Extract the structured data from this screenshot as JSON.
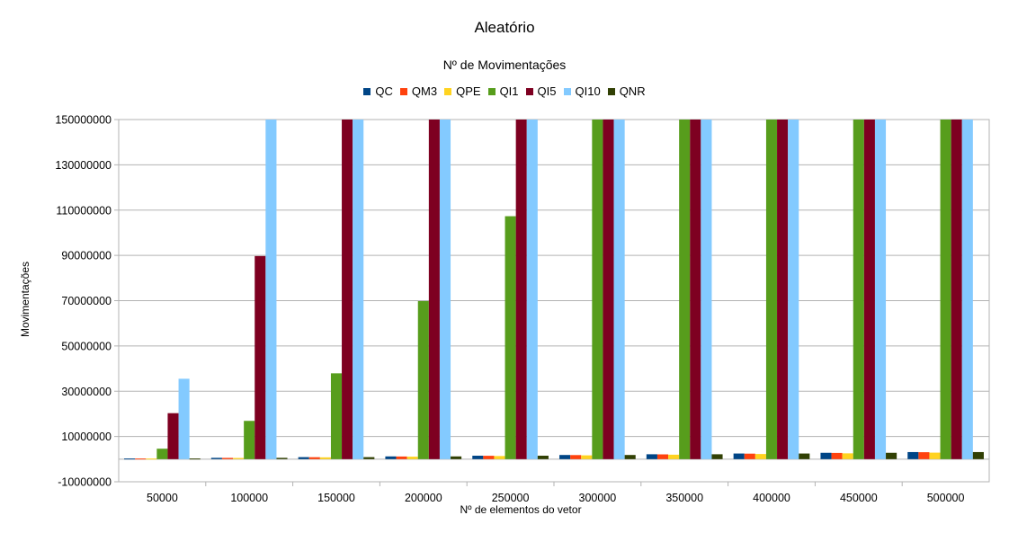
{
  "chart_data": {
    "type": "bar",
    "title": "Aleatório",
    "subtitle": "Nº de Movimentações",
    "xlabel": "Nº de elementos do vetor",
    "ylabel": "Movimentações",
    "categories": [
      "50000",
      "100000",
      "150000",
      "200000",
      "250000",
      "300000",
      "350000",
      "400000",
      "450000",
      "500000"
    ],
    "ylim": [
      -10000000,
      150000000
    ],
    "yticks": [
      "-10000000",
      "10000000",
      "30000000",
      "50000000",
      "70000000",
      "90000000",
      "110000000",
      "130000000",
      "150000000"
    ],
    "grid": true,
    "legend_position": "top",
    "series": [
      {
        "name": "QC",
        "color": "#004586",
        "values": [
          270000,
          570000,
          880000,
          1200000,
          1510000,
          1830000,
          2150000,
          2480000,
          2800000,
          3120000
        ]
      },
      {
        "name": "QM3",
        "color": "#ff420e",
        "values": [
          260000,
          550000,
          850000,
          1160000,
          1470000,
          1790000,
          2100000,
          2420000,
          2740000,
          3060000
        ]
      },
      {
        "name": "QPE",
        "color": "#ffd320",
        "values": [
          240000,
          510000,
          790000,
          1080000,
          1370000,
          1670000,
          1960000,
          2260000,
          2560000,
          2870000
        ]
      },
      {
        "name": "QI1",
        "color": "#579d1c",
        "values": [
          4600000,
          16900000,
          37900000,
          69800000,
          107300000,
          150000000,
          150000000,
          150000000,
          150000000,
          150000000
        ]
      },
      {
        "name": "QI5",
        "color": "#7e0021",
        "values": [
          20300000,
          89700000,
          150000000,
          150000000,
          150000000,
          150000000,
          150000000,
          150000000,
          150000000,
          150000000
        ]
      },
      {
        "name": "QI10",
        "color": "#83caff",
        "values": [
          35500000,
          150000000,
          150000000,
          150000000,
          150000000,
          150000000,
          150000000,
          150000000,
          150000000,
          150000000
        ]
      },
      {
        "name": "QNR",
        "color": "#314004",
        "values": [
          270000,
          570000,
          880000,
          1200000,
          1510000,
          1830000,
          2150000,
          2480000,
          2800000,
          3120000
        ]
      }
    ]
  }
}
